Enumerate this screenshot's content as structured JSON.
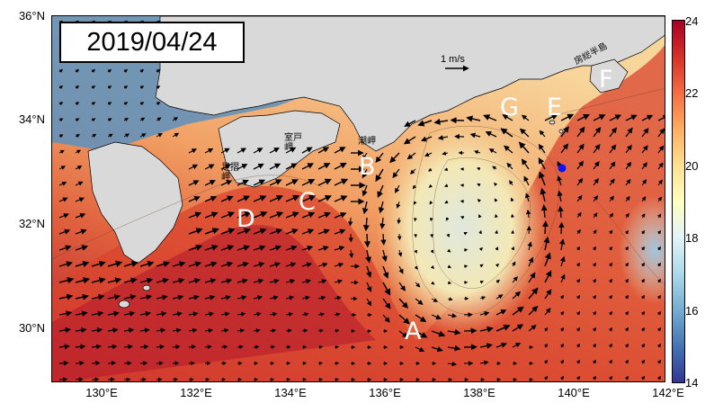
{
  "date": "2019/04/24",
  "map": {
    "lat_labels": [
      "36°N",
      "34°N",
      "32°N",
      "30°N"
    ],
    "lon_labels": [
      "130°E",
      "132°E",
      "134°E",
      "136°E",
      "138°E",
      "140°E",
      "142°E"
    ],
    "lon_range": [
      129,
      142
    ],
    "lat_range": [
      29,
      36
    ],
    "scale_label": "1 m/s",
    "point_labels": [
      "A",
      "B",
      "C",
      "D",
      "E",
      "F",
      "G"
    ],
    "place_labels": {
      "ashizuri": "足摺岬",
      "muroto": "室戸岬",
      "shiono": "潮岬",
      "boso": "房総半島"
    },
    "marker_color": "#1010ff",
    "land_color": "#d9d9d9"
  },
  "colorbar": {
    "ticks": [
      "24",
      "22",
      "20",
      "18",
      "16",
      "14"
    ],
    "range": [
      14,
      24
    ],
    "colors": [
      "#313695",
      "#4575b4",
      "#74add1",
      "#abd9e9",
      "#e0f3f8",
      "#ffffbf",
      "#fee090",
      "#fdae61",
      "#f46d43",
      "#d73027",
      "#a50026"
    ]
  }
}
